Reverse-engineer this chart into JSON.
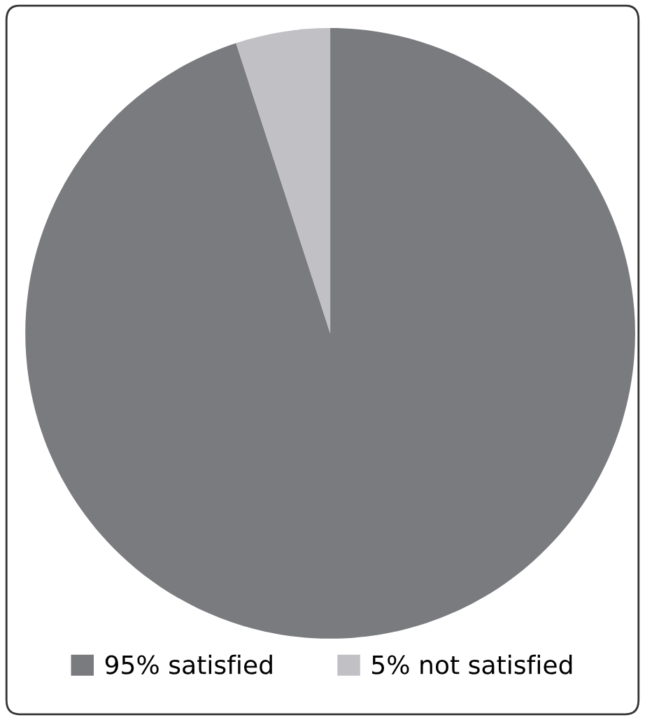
{
  "chart_data": {
    "type": "pie",
    "categories": [
      "95% satisfied",
      "5% not satisfied"
    ],
    "values": [
      95,
      5
    ],
    "colors": [
      "#7a7b7e",
      "#c1c1c5"
    ],
    "legend": "bottom"
  }
}
